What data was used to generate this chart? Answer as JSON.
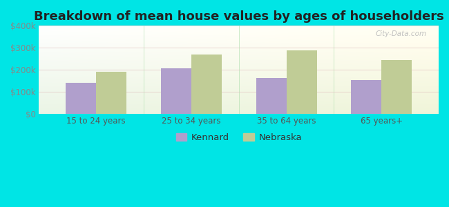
{
  "title": "Breakdown of mean house values by ages of householders",
  "categories": [
    "15 to 24 years",
    "25 to 34 years",
    "35 to 64 years",
    "65 years+"
  ],
  "kennard_values": [
    140000,
    207000,
    162000,
    152000
  ],
  "nebraska_values": [
    192000,
    270000,
    287000,
    245000
  ],
  "kennard_color": "#b09fcc",
  "nebraska_color": "#c0cc96",
  "background_color": "#00e5e5",
  "ylim": [
    0,
    400000
  ],
  "yticks": [
    0,
    100000,
    200000,
    300000,
    400000
  ],
  "ytick_labels": [
    "$0",
    "$100k",
    "$200k",
    "$300k",
    "$400k"
  ],
  "bar_width": 0.32,
  "legend_kennard": "Kennard",
  "legend_nebraska": "Nebraska",
  "watermark": "City-Data.com",
  "title_fontsize": 13,
  "tick_fontsize": 8.5,
  "legend_fontsize": 9.5
}
